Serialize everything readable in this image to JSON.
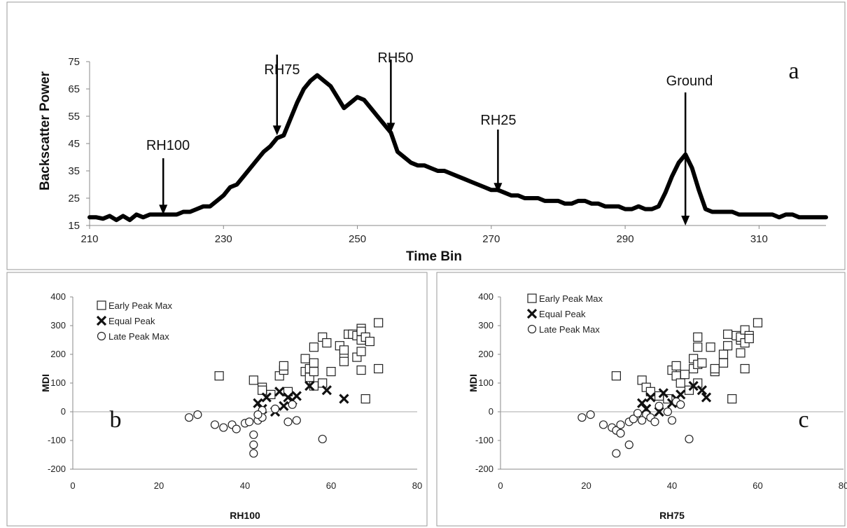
{
  "chart_data": [
    {
      "type": "line",
      "panel": "a",
      "xlabel": "Time Bin",
      "ylabel": "Backscatter Power",
      "xlim": [
        210,
        320
      ],
      "ylim": [
        15,
        75
      ],
      "xticks": [
        210,
        230,
        250,
        270,
        290,
        310
      ],
      "yticks": [
        15,
        25,
        35,
        45,
        55,
        65,
        75
      ],
      "grid": false,
      "series": [
        {
          "x": [
            210,
            211,
            212,
            213,
            214,
            215,
            216,
            217,
            218,
            219,
            220,
            221,
            222,
            223,
            224,
            225,
            226,
            227,
            228,
            229,
            230,
            231,
            232,
            233,
            234,
            235,
            236,
            237,
            238,
            239,
            240,
            241,
            242,
            243,
            244,
            245,
            246,
            247,
            248,
            249,
            250,
            251,
            252,
            253,
            254,
            255,
            256,
            257,
            258,
            259,
            260,
            261,
            262,
            263,
            264,
            265,
            266,
            267,
            268,
            269,
            270,
            271,
            272,
            273,
            274,
            275,
            276,
            277,
            278,
            279,
            280,
            281,
            282,
            283,
            284,
            285,
            286,
            287,
            288,
            289,
            290,
            291,
            292,
            293,
            294,
            295,
            296,
            297,
            298,
            299,
            300,
            301,
            302,
            303,
            304,
            305,
            306,
            307,
            308,
            309,
            310,
            311,
            312,
            313,
            314,
            315,
            316,
            317,
            318,
            319,
            320
          ],
          "y": [
            18,
            18,
            17.5,
            18.5,
            17,
            18.5,
            17,
            19,
            18,
            19,
            19,
            19,
            19,
            19,
            20,
            20,
            21,
            22,
            22,
            24,
            26,
            29,
            30,
            33,
            36,
            39,
            42,
            44,
            47,
            48,
            54,
            60,
            65,
            68,
            70,
            68,
            66,
            62,
            58,
            60,
            62,
            61,
            58,
            55,
            52,
            49,
            42,
            40,
            38,
            37,
            37,
            36,
            35,
            35,
            34,
            33,
            32,
            31,
            30,
            29,
            28,
            28,
            27,
            26,
            26,
            25,
            25,
            25,
            24,
            24,
            24,
            23,
            23,
            24,
            24,
            23,
            23,
            22,
            22,
            22,
            21,
            21,
            22,
            21,
            21,
            22,
            27,
            33,
            38,
            41,
            36,
            28,
            21,
            20,
            20,
            20,
            20,
            19,
            19,
            19,
            19,
            19,
            19,
            18,
            19,
            19,
            18,
            18,
            18,
            18,
            18
          ]
        }
      ],
      "annotations": [
        {
          "text": "RH100",
          "x": 221,
          "y": 19
        },
        {
          "text": "RH75",
          "x": 238,
          "y": 48
        },
        {
          "text": "RH50",
          "x": 255,
          "y": 49
        },
        {
          "text": "RH25",
          "x": 271,
          "y": 27
        },
        {
          "text": "Ground",
          "x": 299,
          "y": 15
        }
      ],
      "panel_label": "a"
    },
    {
      "type": "scatter",
      "panel": "b",
      "xlabel": "RH100",
      "ylabel": "MDI",
      "xlim": [
        0,
        80
      ],
      "ylim": [
        -200,
        400
      ],
      "xticks": [
        0,
        20,
        40,
        60,
        80
      ],
      "yticks": [
        -200,
        -100,
        0,
        100,
        200,
        300,
        400
      ],
      "legend": "top-left",
      "series": [
        {
          "name": "Early Peak Max",
          "marker": "square",
          "points": [
            [
              34,
              125
            ],
            [
              42,
              110
            ],
            [
              44,
              85
            ],
            [
              44,
              75
            ],
            [
              46,
              60
            ],
            [
              48,
              125
            ],
            [
              49,
              145
            ],
            [
              49,
              160
            ],
            [
              50,
              70
            ],
            [
              54,
              140
            ],
            [
              54,
              185
            ],
            [
              55,
              150
            ],
            [
              55,
              120
            ],
            [
              56,
              170
            ],
            [
              56,
              140
            ],
            [
              56,
              225
            ],
            [
              56,
              90
            ],
            [
              58,
              260
            ],
            [
              59,
              240
            ],
            [
              58,
              100
            ],
            [
              60,
              140
            ],
            [
              62,
              230
            ],
            [
              63,
              195
            ],
            [
              63,
              215
            ],
            [
              63,
              175
            ],
            [
              64,
              270
            ],
            [
              65,
              270
            ],
            [
              66,
              265
            ],
            [
              66,
              190
            ],
            [
              67,
              290
            ],
            [
              67,
              280
            ],
            [
              67,
              250
            ],
            [
              67,
              210
            ],
            [
              67,
              145
            ],
            [
              68,
              45
            ],
            [
              68,
              260
            ],
            [
              69,
              245
            ],
            [
              71,
              310
            ],
            [
              71,
              150
            ]
          ]
        },
        {
          "name": "Equal Peak",
          "marker": "x",
          "points": [
            [
              43,
              30
            ],
            [
              44,
              10
            ],
            [
              45,
              50
            ],
            [
              47,
              0
            ],
            [
              48,
              70
            ],
            [
              49,
              20
            ],
            [
              50,
              50
            ],
            [
              51,
              40
            ],
            [
              52,
              55
            ],
            [
              55,
              90
            ],
            [
              59,
              75
            ],
            [
              63,
              45
            ]
          ]
        },
        {
          "name": "Late Peak Max",
          "marker": "circle",
          "points": [
            [
              27,
              -20
            ],
            [
              29,
              -10
            ],
            [
              33,
              -45
            ],
            [
              35,
              -55
            ],
            [
              37,
              -45
            ],
            [
              38,
              -60
            ],
            [
              40,
              -40
            ],
            [
              41,
              -35
            ],
            [
              42,
              -80
            ],
            [
              42,
              -115
            ],
            [
              42,
              -145
            ],
            [
              43,
              -30
            ],
            [
              44,
              5
            ],
            [
              44,
              -20
            ],
            [
              47,
              10
            ],
            [
              50,
              -35
            ],
            [
              51,
              25
            ],
            [
              52,
              -30
            ],
            [
              58,
              -95
            ],
            [
              43,
              -10
            ]
          ]
        }
      ],
      "panel_label": "b"
    },
    {
      "type": "scatter",
      "panel": "c",
      "xlabel": "RH75",
      "ylabel": "MDI",
      "xlim": [
        0,
        80
      ],
      "ylim": [
        -200,
        400
      ],
      "xticks": [
        0,
        20,
        40,
        60,
        80
      ],
      "yticks": [
        -200,
        -100,
        0,
        100,
        200,
        300,
        400
      ],
      "legend": "top-left",
      "series": [
        {
          "name": "Early Peak Max",
          "marker": "square",
          "points": [
            [
              27,
              125
            ],
            [
              33,
              110
            ],
            [
              34,
              85
            ],
            [
              35,
              70
            ],
            [
              37,
              55
            ],
            [
              39,
              45
            ],
            [
              40,
              145
            ],
            [
              41,
              160
            ],
            [
              41,
              125
            ],
            [
              42,
              100
            ],
            [
              43,
              130
            ],
            [
              44,
              75
            ],
            [
              45,
              150
            ],
            [
              45,
              185
            ],
            [
              46,
              165
            ],
            [
              46,
              225
            ],
            [
              46,
              260
            ],
            [
              46,
              100
            ],
            [
              47,
              170
            ],
            [
              49,
              225
            ],
            [
              50,
              140
            ],
            [
              50,
              150
            ],
            [
              52,
              170
            ],
            [
              52,
              200
            ],
            [
              53,
              230
            ],
            [
              53,
              270
            ],
            [
              54,
              45
            ],
            [
              55,
              265
            ],
            [
              56,
              205
            ],
            [
              56,
              250
            ],
            [
              56,
              260
            ],
            [
              57,
              285
            ],
            [
              57,
              240
            ],
            [
              57,
              150
            ],
            [
              58,
              265
            ],
            [
              58,
              255
            ],
            [
              60,
              310
            ]
          ]
        },
        {
          "name": "Equal Peak",
          "marker": "x",
          "points": [
            [
              33,
              30
            ],
            [
              34,
              10
            ],
            [
              35,
              50
            ],
            [
              37,
              0
            ],
            [
              38,
              65
            ],
            [
              40,
              30
            ],
            [
              41,
              45
            ],
            [
              42,
              60
            ],
            [
              45,
              90
            ],
            [
              47,
              75
            ],
            [
              48,
              50
            ]
          ]
        },
        {
          "name": "Late Peak Max",
          "marker": "circle",
          "points": [
            [
              19,
              -20
            ],
            [
              21,
              -10
            ],
            [
              24,
              -45
            ],
            [
              26,
              -55
            ],
            [
              27,
              -145
            ],
            [
              27,
              -65
            ],
            [
              28,
              -75
            ],
            [
              28,
              -45
            ],
            [
              30,
              -115
            ],
            [
              30,
              -35
            ],
            [
              31,
              -25
            ],
            [
              32,
              -5
            ],
            [
              34,
              -10
            ],
            [
              35,
              -20
            ],
            [
              36,
              -35
            ],
            [
              37,
              20
            ],
            [
              39,
              0
            ],
            [
              40,
              -30
            ],
            [
              41,
              35
            ],
            [
              42,
              25
            ],
            [
              44,
              -95
            ],
            [
              33,
              -30
            ]
          ]
        }
      ],
      "panel_label": "c"
    }
  ]
}
